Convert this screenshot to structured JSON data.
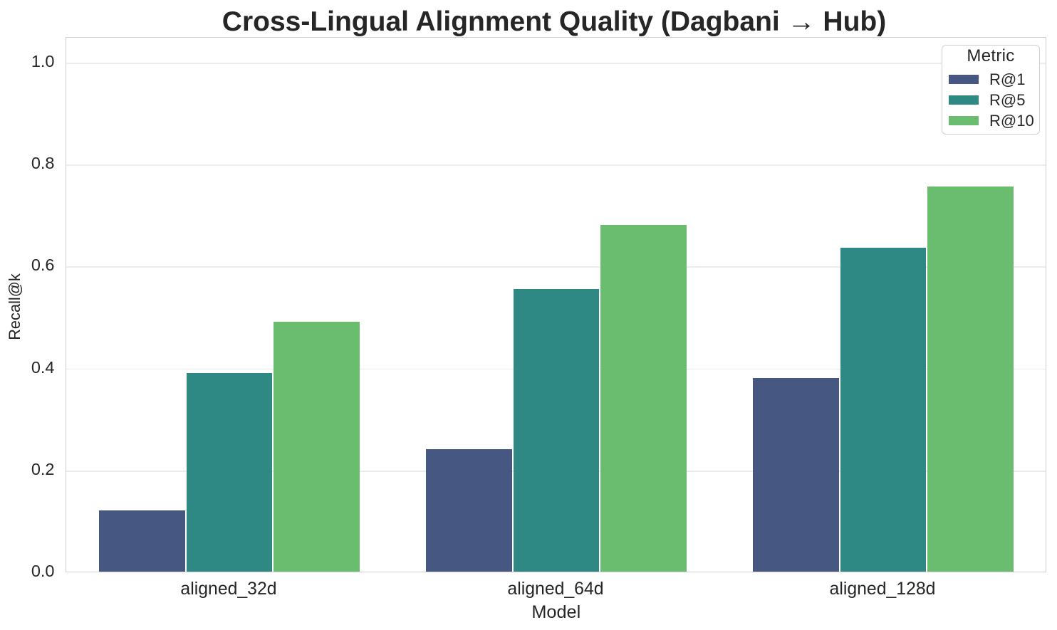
{
  "title": "Cross-Lingual Alignment Quality (Dagbani → Hub)",
  "chart_data": {
    "type": "bar",
    "categories": [
      "aligned_32d",
      "aligned_64d",
      "aligned_128d"
    ],
    "series": [
      {
        "name": "R@1",
        "color": "#465781",
        "values": [
          0.12,
          0.24,
          0.38
        ]
      },
      {
        "name": "R@5",
        "color": "#2E8883",
        "values": [
          0.39,
          0.555,
          0.635
        ]
      },
      {
        "name": "R@10",
        "color": "#6ABC6E",
        "values": [
          0.49,
          0.68,
          0.755
        ]
      }
    ],
    "xlabel": "Model",
    "ylabel": "Recall@k",
    "ylim": [
      0,
      1.05
    ],
    "yticks": [
      "0.0",
      "0.2",
      "0.4",
      "0.6",
      "0.8",
      "1.0"
    ],
    "legend_title": "Metric",
    "legend_position": "upper right",
    "grid": "horizontal"
  }
}
